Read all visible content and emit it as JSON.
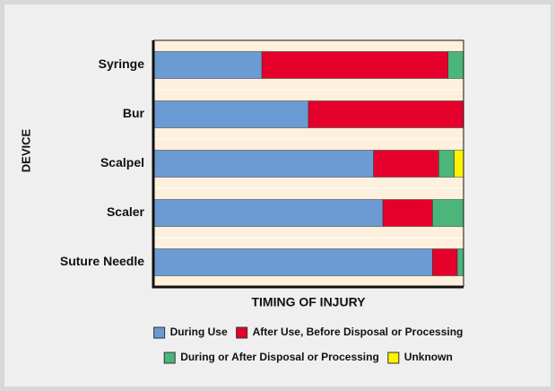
{
  "chart_data": {
    "type": "stacked-bar-horizontal",
    "xlabel": "TIMING OF INJURY",
    "ylabel": "DEVICE",
    "categories": [
      "Syringe",
      "Bur",
      "Scalpel",
      "Scaler",
      "Suture Needle"
    ],
    "series": [
      {
        "name": "During Use",
        "color": "#6b9bd2",
        "values": [
          35,
          50,
          71,
          74,
          90
        ]
      },
      {
        "name": "After Use, Before Disposal or Processing",
        "color": "#e4002b",
        "values": [
          60,
          50,
          21,
          16,
          8
        ]
      },
      {
        "name": "During or After Disposal or Processing",
        "color": "#4cb57a",
        "values": [
          5,
          0,
          5,
          10,
          2
        ]
      },
      {
        "name": "Unknown",
        "color": "#fff200",
        "values": [
          0,
          0,
          3,
          0,
          0
        ]
      }
    ],
    "xlim": [
      0,
      100
    ]
  }
}
